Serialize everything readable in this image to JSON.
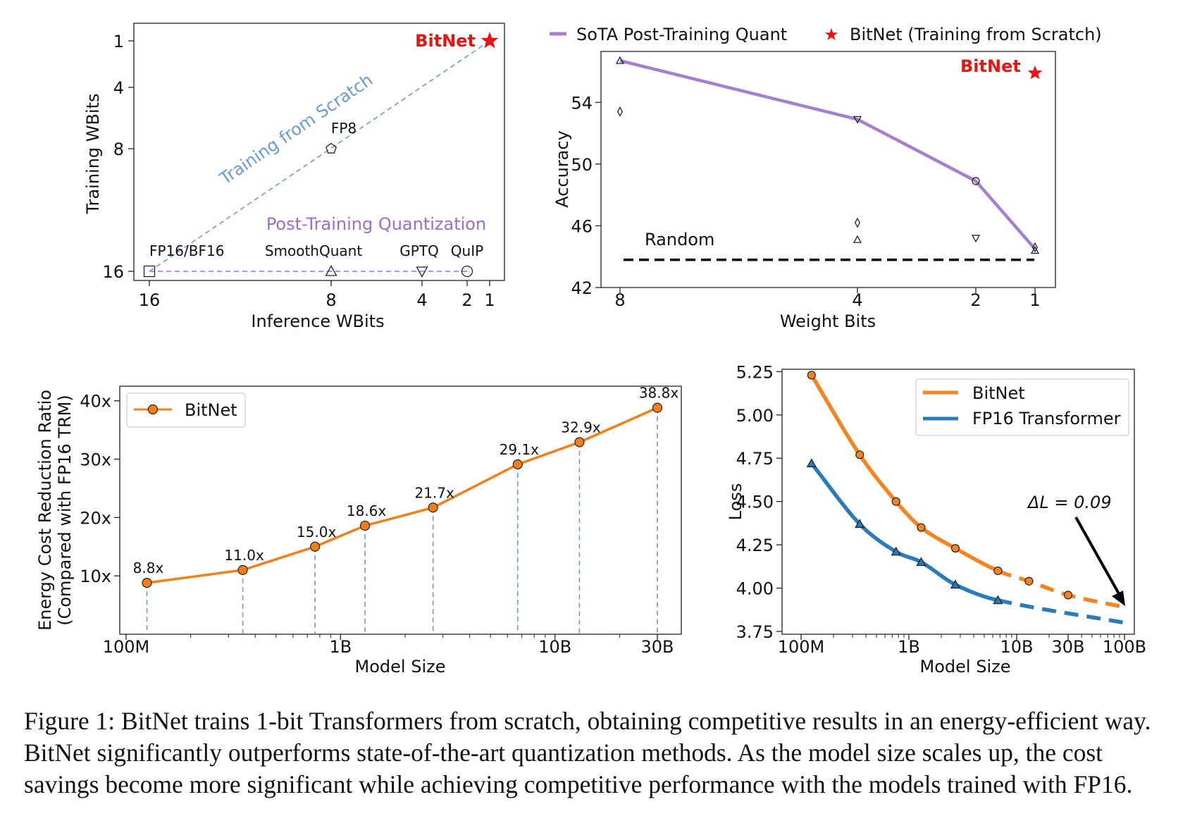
{
  "caption": "Figure 1: BitNet trains 1-bit Transformers from scratch, obtaining competitive results in an energy-efficient way. BitNet significantly outperforms state-of-the-art quantization methods. As the model size scales up, the cost savings become more significant while achieving competitive performance with the models trained with FP16.",
  "chart_data": [
    {
      "id": "bits",
      "type": "scatter",
      "xlabel": "Inference WBits",
      "ylabel": "Training WBits",
      "x_ticks": [
        "16",
        "8",
        "4",
        "2",
        "1"
      ],
      "y_ticks": [
        "1",
        "4",
        "8",
        "16"
      ],
      "grid": false,
      "points": [
        {
          "name": "FP16/BF16",
          "x": 16,
          "y": 16,
          "marker": "square"
        },
        {
          "name": "SmoothQuant",
          "x": 8,
          "y": 16,
          "marker": "triangle-up"
        },
        {
          "name": "GPTQ",
          "x": 4,
          "y": 16,
          "marker": "triangle-down"
        },
        {
          "name": "QuIP",
          "x": 2,
          "y": 16,
          "marker": "circle"
        },
        {
          "name": "FP8",
          "x": 8,
          "y": 8,
          "marker": "pentagon"
        },
        {
          "name": "BitNet",
          "x": 1,
          "y": 1,
          "marker": "star",
          "color": "#ee1111"
        }
      ],
      "annotations": {
        "training_line": "Training from Scratch",
        "ptq_line": "Post-Training Quantization"
      },
      "colors": {
        "training": "#6a9bd0",
        "ptq": "#9d6bd0",
        "bitnet": "#ee1111"
      }
    },
    {
      "id": "accuracy",
      "type": "line",
      "xlabel": "Weight Bits",
      "ylabel": "Accuracy",
      "x_ticks": [
        "8",
        "4",
        "2",
        "1"
      ],
      "ylim": [
        42,
        57.3
      ],
      "y_ticks": [
        42,
        46,
        50,
        54
      ],
      "legend": [
        "SoTA Post-Training Quant",
        "BitNet (Training from Scratch)"
      ],
      "legend_position": "top",
      "series": [
        {
          "name": "SoTA Post-Training Quant",
          "x": [
            8,
            4,
            2,
            1
          ],
          "y": [
            56.7,
            52.9,
            48.9,
            44.5
          ],
          "color": "#a57fcf"
        }
      ],
      "bitnet_point": {
        "label": "BitNet",
        "x": 1,
        "y": 55.9,
        "color": "#ee1111"
      },
      "method_points": [
        {
          "x": 8,
          "y": 56.7,
          "marker": "triangle-up"
        },
        {
          "x": 8,
          "y": 53.4,
          "marker": "diamond"
        },
        {
          "x": 4,
          "y": 52.9,
          "marker": "triangle-down"
        },
        {
          "x": 4,
          "y": 46.2,
          "marker": "diamond"
        },
        {
          "x": 4,
          "y": 45.1,
          "marker": "triangle-up"
        },
        {
          "x": 2,
          "y": 48.9,
          "marker": "circle"
        },
        {
          "x": 2,
          "y": 45.2,
          "marker": "triangle-down"
        },
        {
          "x": 1,
          "y": 44.6,
          "marker": "diamond"
        },
        {
          "x": 1,
          "y": 44.4,
          "marker": "triangle-up"
        }
      ],
      "random_baseline": {
        "label": "Random",
        "y": 43.8
      }
    },
    {
      "id": "energy",
      "type": "line",
      "xlabel": "Model Size",
      "ylabel": "Energy Cost Reduction Ratio\n(Compared with FP16 TRM)",
      "x_scale": "log",
      "x_ticks": [
        {
          "label": "100M",
          "value": 100000000
        },
        {
          "label": "1B",
          "value": 1000000000
        },
        {
          "label": "10B",
          "value": 10000000000
        },
        {
          "label": "30B",
          "value": 30000000000
        }
      ],
      "ylim": [
        0,
        42.5
      ],
      "y_ticks": [
        {
          "label": "10x",
          "value": 10
        },
        {
          "label": "20x",
          "value": 20
        },
        {
          "label": "30x",
          "value": 30
        },
        {
          "label": "40x",
          "value": 40
        }
      ],
      "legend": [
        "BitNet"
      ],
      "legend_position": "top-left",
      "series": [
        {
          "name": "BitNet",
          "color": "#f57f17",
          "x": [
            125000000,
            350000000,
            760000000,
            1300000000,
            2700000000,
            6700000000,
            13000000000,
            30000000000
          ],
          "y": [
            8.8,
            11.0,
            15.0,
            18.6,
            21.7,
            29.1,
            32.9,
            38.8
          ],
          "labels": [
            "8.8x",
            "11.0x",
            "15.0x",
            "18.6x",
            "21.7x",
            "29.1x",
            "32.9x",
            "38.8x"
          ]
        }
      ]
    },
    {
      "id": "loss",
      "type": "line",
      "xlabel": "Model Size",
      "ylabel": "Loss",
      "x_scale": "log",
      "x_ticks": [
        {
          "label": "100M",
          "value": 100000000
        },
        {
          "label": "1B",
          "value": 1000000000
        },
        {
          "label": "10B",
          "value": 10000000000
        },
        {
          "label": "30B",
          "value": 30000000000
        },
        {
          "label": "100B",
          "value": 100000000000
        }
      ],
      "ylim": [
        3.75,
        5.28
      ],
      "y_ticks": [
        3.75,
        4.0,
        4.25,
        4.5,
        4.75,
        5.0,
        5.25
      ],
      "legend": [
        "BitNet",
        "FP16 Transformer"
      ],
      "legend_position": "top-right",
      "series": [
        {
          "name": "BitNet",
          "color": "#f58320",
          "points_x": [
            125000000,
            350000000,
            760000000,
            1300000000,
            2700000000,
            6700000000,
            13000000000,
            30000000000
          ],
          "points_y": [
            5.23,
            4.77,
            4.5,
            4.35,
            4.23,
            4.1,
            4.04,
            3.96
          ],
          "dashed_after": 6700000000,
          "fit_end": {
            "x": 100000000000,
            "y": 3.89
          }
        },
        {
          "name": "FP16 Transformer",
          "color": "#2a7bba",
          "points_x": [
            125000000,
            350000000,
            760000000,
            1300000000,
            2700000000,
            6700000000
          ],
          "points_y": [
            4.72,
            4.37,
            4.21,
            4.15,
            4.02,
            3.93
          ],
          "dashed_after": 6700000000,
          "fit_end": {
            "x": 100000000000,
            "y": 3.8
          }
        }
      ],
      "annotation": "ΔL = 0.09"
    }
  ]
}
